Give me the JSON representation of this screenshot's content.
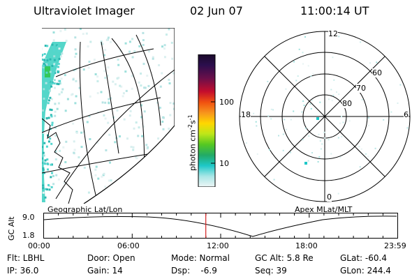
{
  "header": {
    "title": "Ultraviolet Imager",
    "date": "02 Jun 07",
    "time": "11:00:14 UT"
  },
  "geo_panel": {
    "label": "Geographic Lat/Lon"
  },
  "colorbar": {
    "unit_label": "photon cm",
    "unit_exp1": "-2",
    "unit_mid": "s",
    "unit_exp2": "-1",
    "ticks": [
      "100",
      "10"
    ],
    "colors": [
      "#1a0a2a",
      "#2b0e4d",
      "#6a0f4a",
      "#a40d2d",
      "#d6101e",
      "#f05010",
      "#f7941d",
      "#ffd700",
      "#c8e619",
      "#66cc22",
      "#22aa66",
      "#1ec8c8",
      "#a9e6e6",
      "#e8f4f4"
    ]
  },
  "polar_panel": {
    "label": "Apex MLat/MLT",
    "lat_labels": [
      "60",
      "70",
      "80"
    ],
    "mlt_labels": {
      "top": "12",
      "left": "18",
      "right": "6",
      "bottom": "0"
    }
  },
  "timeline": {
    "y_label": "GC Alt",
    "y_ticks": [
      "9.0",
      "1.8"
    ],
    "x_ticks": [
      "00:00",
      "06:00",
      "12:00",
      "18:00",
      "23:59"
    ],
    "cursor_fraction": 0.458
  },
  "info": {
    "filter": "Flt: LBHL",
    "ip": "IP: 36.0",
    "door": "Door: Open",
    "gain": "Gain: 14",
    "mode": "Mode: Normal",
    "dsp": "Dsp:    -6.9",
    "gc_alt": "GC Alt: 5.8 Re",
    "seq": "Seq: 39",
    "glat": "GLat: -60.4",
    "glon": "GLon: 244.4"
  }
}
